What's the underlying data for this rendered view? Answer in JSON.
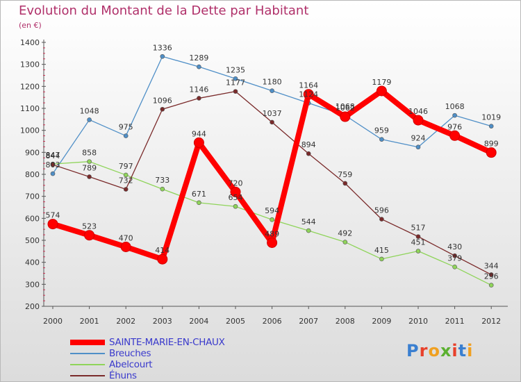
{
  "title": "Evolution du Montant de la Dette par Habitant",
  "subtitle": "(en €)",
  "logo_text": "Proxiti",
  "chart_data": {
    "type": "line",
    "x": [
      "2000",
      "2001",
      "2002",
      "2003",
      "2004",
      "2005",
      "2006",
      "2007",
      "2008",
      "2009",
      "2010",
      "2011",
      "2012"
    ],
    "ylim": [
      200,
      1400
    ],
    "yticks": [
      "200",
      "300",
      "400",
      "500",
      "600",
      "700",
      "800",
      "900",
      "1000",
      "1100",
      "1200",
      "1300",
      "1400"
    ],
    "grid": false,
    "legend_position": "bottom-left",
    "series": [
      {
        "name": "SAINTE-MARIE-EN-CHAUX",
        "color": "#ff0000",
        "values": [
          574,
          523,
          470,
          414,
          944,
          720,
          489,
          1164,
          1062,
          1179,
          1046,
          976,
          899
        ]
      },
      {
        "name": "Breuches",
        "color": "#4f8fc7",
        "values": [
          803,
          1048,
          975,
          1336,
          1289,
          1235,
          1180,
          1124,
          1068,
          959,
          924,
          1068,
          1019
        ]
      },
      {
        "name": "Abelcourt",
        "color": "#8fd45a",
        "values": [
          847,
          858,
          797,
          733,
          671,
          654,
          594,
          544,
          492,
          415,
          451,
          379,
          296
        ]
      },
      {
        "name": "Éhuns",
        "color": "#7a2a2a",
        "values": [
          844,
          789,
          732,
          1096,
          1146,
          1177,
          1037,
          894,
          759,
          596,
          517,
          430,
          344
        ]
      }
    ]
  }
}
